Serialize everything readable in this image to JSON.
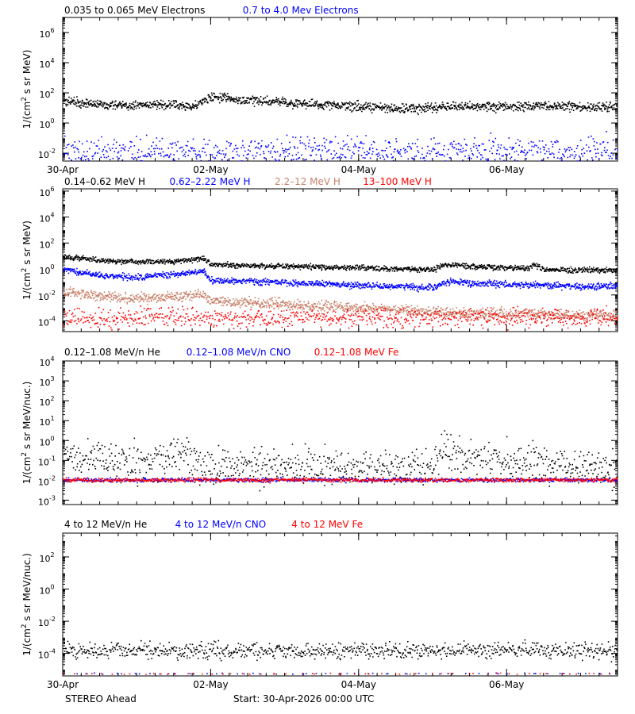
{
  "colors": {
    "black": "#000000",
    "blue": "#0000ff",
    "tan": "#c8806a",
    "red": "#ff0000"
  },
  "footer": {
    "spacecraft": "STEREO Ahead",
    "start": "Start: 30-Apr-2026 00:00 UTC"
  },
  "chart_data": [
    {
      "type": "scatter",
      "ylabel_main": "1/(cm",
      "ylabel_sup": "2",
      "ylabel_tail": " s sr MeV)",
      "yscale": "log",
      "ylim": [
        0.003,
        10000000
      ],
      "xlim": [
        0,
        7.5
      ],
      "x_unit": "days since 30-Apr-2026 00:00 UTC",
      "xticks": [
        {
          "x": 0,
          "label": "30-Apr"
        },
        {
          "x": 2,
          "label": "02-May"
        },
        {
          "x": 4,
          "label": "04-May"
        },
        {
          "x": 6,
          "label": "06-May"
        }
      ],
      "yticks": [
        {
          "exp": 6,
          "label": "10",
          "sup": "6"
        },
        {
          "exp": 4,
          "label": "10",
          "sup": "4"
        },
        {
          "exp": 2,
          "label": "10",
          "sup": "2"
        },
        {
          "exp": 0,
          "label": "10",
          "sup": "0"
        },
        {
          "exp": -2,
          "label": "10",
          "sup": "-2"
        }
      ],
      "series": [
        {
          "name": "0.035 to 0.065 MeV Electrons",
          "color": "black",
          "x": [
            0,
            0.5,
            1,
            1.5,
            1.8,
            2.0,
            2.5,
            3,
            3.5,
            4,
            4.5,
            5,
            5.5,
            6,
            6.5,
            7,
            7.5
          ],
          "y": [
            30,
            18,
            15,
            18,
            15,
            60,
            35,
            25,
            18,
            14,
            10,
            12,
            14,
            13,
            14,
            13,
            12
          ],
          "noise": 0.15
        },
        {
          "name": "0.7 to 4.0 Mev Electrons",
          "color": "blue",
          "x": [
            0,
            7.5
          ],
          "y": [
            0.012,
            0.012
          ],
          "noise": 0.5,
          "scatter": true
        }
      ]
    },
    {
      "type": "scatter",
      "ylabel_main": "1/(cm",
      "ylabel_sup": "2",
      "ylabel_tail": " s sr MeV)",
      "yscale": "log",
      "ylim": [
        1.5e-05,
        1500000
      ],
      "xlim": [
        0,
        7.5
      ],
      "x_unit": "days since 30-Apr-2026 00:00 UTC",
      "xticks": [
        {
          "x": 0,
          "label": ""
        },
        {
          "x": 2,
          "label": ""
        },
        {
          "x": 4,
          "label": ""
        },
        {
          "x": 6,
          "label": ""
        }
      ],
      "yticks": [
        {
          "exp": 6,
          "label": "10",
          "sup": "6"
        },
        {
          "exp": 4,
          "label": "10",
          "sup": "4"
        },
        {
          "exp": 2,
          "label": "10",
          "sup": "2"
        },
        {
          "exp": 0,
          "label": "10",
          "sup": "0"
        },
        {
          "exp": -2,
          "label": "10",
          "sup": "-2"
        },
        {
          "exp": -4,
          "label": "10",
          "sup": "-4"
        }
      ],
      "series": [
        {
          "name": "0.14–0.62 MeV H",
          "color": "black",
          "x": [
            0,
            0.5,
            1,
            1.5,
            1.9,
            2.0,
            2.5,
            3,
            3.5,
            4,
            4.5,
            5,
            5.2,
            5.5,
            6,
            6.3,
            6.35,
            6.5,
            7,
            7.5
          ],
          "y": [
            10,
            5,
            4,
            4,
            7,
            2.5,
            2,
            1.8,
            1.6,
            1.3,
            1.1,
            1.0,
            2.5,
            1.8,
            1.4,
            1.2,
            2.5,
            1.0,
            0.9,
            0.9
          ],
          "noise": 0.1
        },
        {
          "name": "0.62–2.22 MeV H",
          "color": "blue",
          "x": [
            0,
            0.5,
            1,
            1.5,
            1.9,
            2.0,
            2.5,
            3,
            3.5,
            4,
            4.5,
            5,
            5.2,
            5.5,
            6,
            6.5,
            7,
            7.5
          ],
          "y": [
            1.0,
            0.35,
            0.25,
            0.4,
            0.8,
            0.15,
            0.12,
            0.1,
            0.08,
            0.06,
            0.05,
            0.04,
            0.12,
            0.09,
            0.07,
            0.06,
            0.05,
            0.05
          ],
          "noise": 0.12
        },
        {
          "name": "2.2–12 MeV H",
          "color": "tan",
          "x": [
            0,
            0.5,
            1,
            1.5,
            1.9,
            2.0,
            2.5,
            3,
            3.5,
            4,
            4.5,
            5,
            5.5,
            6,
            6.5,
            7,
            7.5
          ],
          "y": [
            0.02,
            0.008,
            0.006,
            0.008,
            0.012,
            0.004,
            0.003,
            0.002,
            0.0015,
            0.001,
            0.0008,
            0.0005,
            0.0004,
            0.0004,
            0.0004,
            0.0003,
            0.0003
          ],
          "noise": 0.2
        },
        {
          "name": "13–100 MeV H",
          "color": "red",
          "x": [
            0,
            7.5
          ],
          "y": [
            0.0002,
            0.0002
          ],
          "noise": 0.35,
          "scatter": true
        }
      ]
    },
    {
      "type": "scatter",
      "ylabel_main": "1/(cm",
      "ylabel_sup": "2",
      "ylabel_tail": " s sr MeV/nuc.)",
      "yscale": "log",
      "ylim": [
        0.0006,
        10000
      ],
      "xlim": [
        0,
        7.5
      ],
      "x_unit": "days since 30-Apr-2026 00:00 UTC",
      "xticks": [
        {
          "x": 0,
          "label": ""
        },
        {
          "x": 2,
          "label": ""
        },
        {
          "x": 4,
          "label": ""
        },
        {
          "x": 6,
          "label": ""
        }
      ],
      "yticks": [
        {
          "exp": 4,
          "label": "10",
          "sup": "4"
        },
        {
          "exp": 3,
          "label": "10",
          "sup": "3"
        },
        {
          "exp": 2,
          "label": "10",
          "sup": "2"
        },
        {
          "exp": 1,
          "label": "10",
          "sup": "1"
        },
        {
          "exp": 0,
          "label": "10",
          "sup": "0"
        },
        {
          "exp": -1,
          "label": "10",
          "sup": "-1"
        },
        {
          "exp": -2,
          "label": "10",
          "sup": "-2"
        },
        {
          "exp": -3,
          "label": "10",
          "sup": "-3"
        }
      ],
      "series": [
        {
          "name": "0.12–1.08 MeV/n He",
          "color": "black",
          "x": [
            0,
            1,
            1.6,
            2.0,
            3,
            4,
            5,
            5.1,
            5.5,
            6,
            6.5,
            7,
            7.5
          ],
          "y": [
            0.12,
            0.1,
            0.2,
            0.06,
            0.05,
            0.05,
            0.05,
            0.35,
            0.15,
            0.12,
            0.08,
            0.06,
            0.05
          ],
          "noise": 0.45,
          "scatter": true
        },
        {
          "name": "0.12–1.08 MeV/n CNO",
          "color": "blue",
          "x": [
            0,
            7.5
          ],
          "y": [
            0.011,
            0.011
          ],
          "noise": 0.05,
          "scatter": true
        },
        {
          "name": "0.12–1.08 MeV Fe",
          "color": "red",
          "x": [
            0,
            7.5
          ],
          "y": [
            0.011,
            0.011
          ],
          "noise": 0.05,
          "scatter": true
        }
      ]
    },
    {
      "type": "scatter",
      "ylabel_main": "1/(cm",
      "ylabel_sup": "2",
      "ylabel_tail": " s sr MeV/nuc.)",
      "yscale": "log",
      "ylim": [
        4e-06,
        3000
      ],
      "xlim": [
        0,
        7.5
      ],
      "x_unit": "days since 30-Apr-2026 00:00 UTC",
      "xticks": [
        {
          "x": 0,
          "label": "30-Apr"
        },
        {
          "x": 2,
          "label": "02-May"
        },
        {
          "x": 4,
          "label": "04-May"
        },
        {
          "x": 6,
          "label": "06-May"
        }
      ],
      "yticks": [
        {
          "exp": 2,
          "label": "10",
          "sup": "2"
        },
        {
          "exp": 0,
          "label": "10",
          "sup": "0"
        },
        {
          "exp": -2,
          "label": "10",
          "sup": "-2"
        },
        {
          "exp": -4,
          "label": "10",
          "sup": "-4"
        }
      ],
      "series": [
        {
          "name": "4 to 12 MeV/n He",
          "color": "black",
          "x": [
            0,
            7.5
          ],
          "y": [
            0.00016,
            0.00016
          ],
          "noise": 0.25,
          "scatter": true
        },
        {
          "name": "4 to 12 MeV/n CNO",
          "color": "blue",
          "x": [
            0,
            7.5
          ],
          "y": [
            6e-06,
            6e-06
          ],
          "noise": 0.02,
          "scatter": true,
          "sparse": true
        },
        {
          "name": "4 to 12 MeV Fe",
          "color": "red",
          "x": [
            0,
            7.5
          ],
          "y": [
            6e-06,
            6e-06
          ],
          "noise": 0.02,
          "scatter": true,
          "sparse": true
        }
      ]
    }
  ]
}
